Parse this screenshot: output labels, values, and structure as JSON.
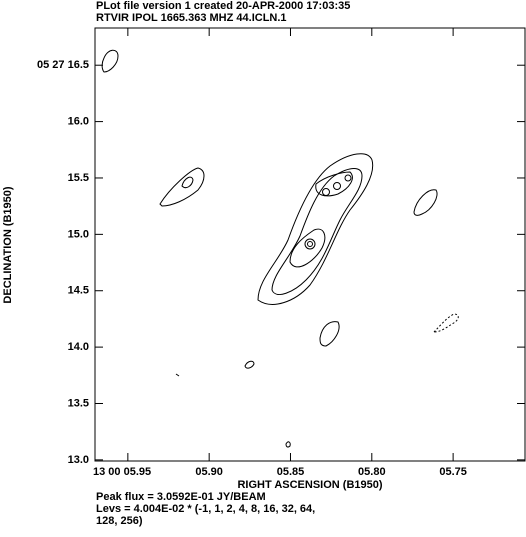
{
  "chart_data": {
    "type": "contour",
    "title": "PLot file version 1  created 20-APR-2000 17:03:35",
    "subtitle": "RTVIR  IPOL  1665.363 MHZ  44.ICLN.1",
    "x_label": "RIGHT ASCENSION (B1950)",
    "y_label": "DECLINATION (B1950)",
    "xlim": [
      5.9702,
      5.7058
    ],
    "ylim": [
      12.99,
      16.83
    ],
    "xticks": [
      {
        "value": 5.95,
        "label": "13 00 05.95"
      },
      {
        "value": 5.9,
        "label": "05.90"
      },
      {
        "value": 5.85,
        "label": "05.85"
      },
      {
        "value": 5.8,
        "label": "05.80"
      },
      {
        "value": 5.75,
        "label": "05.75"
      }
    ],
    "yticks": [
      {
        "value": 16.5,
        "label": "05 27 16.5"
      },
      {
        "value": 16.0,
        "label": "16.0"
      },
      {
        "value": 15.5,
        "label": "15.5"
      },
      {
        "value": 15.0,
        "label": "15.0"
      },
      {
        "value": 14.5,
        "label": "14.5"
      },
      {
        "value": 14.0,
        "label": "14.0"
      },
      {
        "value": 13.5,
        "label": "13.5"
      },
      {
        "value": 13.0,
        "label": "13.0"
      }
    ],
    "footer": [
      "Peak flux =  3.0592E-01 JY/BEAM",
      "Levs = 4.004E-02 * (-1, 1, 2, 4, 8, 16, 32, 64,",
      "128, 256)"
    ]
  }
}
